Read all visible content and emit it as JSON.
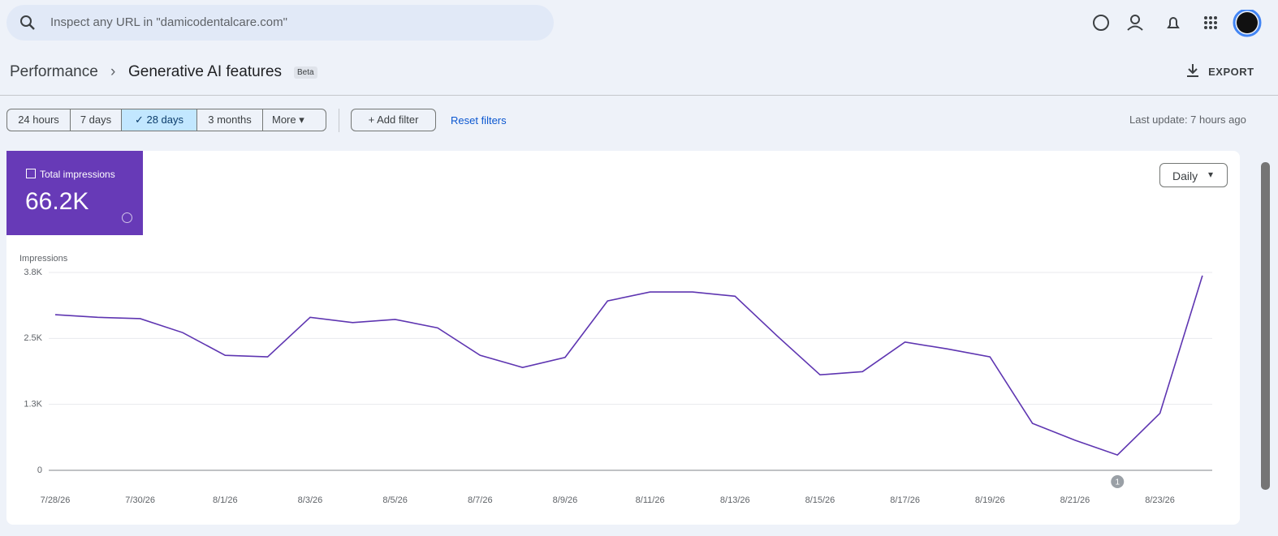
{
  "search": {
    "placeholder": "Inspect any URL in \"damicodentalcare.com\""
  },
  "breadcrumb": {
    "parent": "Performance",
    "current": "Generative AI features",
    "badge": "Beta"
  },
  "export": "EXPORT",
  "ranges": [
    "24 hours",
    "7 days",
    "28 days",
    "3 months"
  ],
  "selected_range": 2,
  "more": "More",
  "add_filter": "Add filter",
  "reset_filters": "Reset filters",
  "last_update": "Last update: 7 hours ago",
  "metric": {
    "label": "Total impressions",
    "value": "66.2K"
  },
  "granularity": "Daily",
  "chart_data": {
    "type": "line",
    "y_label": "Impressions",
    "categories": [
      "7/28/26",
      null,
      "7/30/26",
      null,
      "8/1/26",
      null,
      "8/3/26",
      null,
      "8/5/26",
      null,
      "8/7/26",
      null,
      "8/9/26",
      null,
      "8/11/26",
      null,
      "8/13/26",
      null,
      "8/15/26",
      null,
      "8/17/26",
      null,
      "8/19/26",
      null,
      "8/21/26",
      null,
      "8/23/26",
      null
    ],
    "values": [
      2950,
      2900,
      2875,
      2610,
      2180,
      2150,
      2900,
      2800,
      2860,
      2700,
      2180,
      1950,
      2140,
      3210,
      3380,
      3380,
      3300,
      2540,
      1810,
      1870,
      2430,
      2300,
      2150,
      890,
      570,
      290,
      1080,
      3690
    ],
    "color": "#5e35b1",
    "ylim": [
      0,
      3750
    ],
    "yticks": [
      0,
      {
        "value": 1250,
        "label": "1.3K"
      },
      {
        "value": 2500,
        "label": "2.5K"
      },
      {
        "value": 3750,
        "label": "3.8K"
      }
    ],
    "grid": true,
    "annotations": [
      "1"
    ]
  }
}
